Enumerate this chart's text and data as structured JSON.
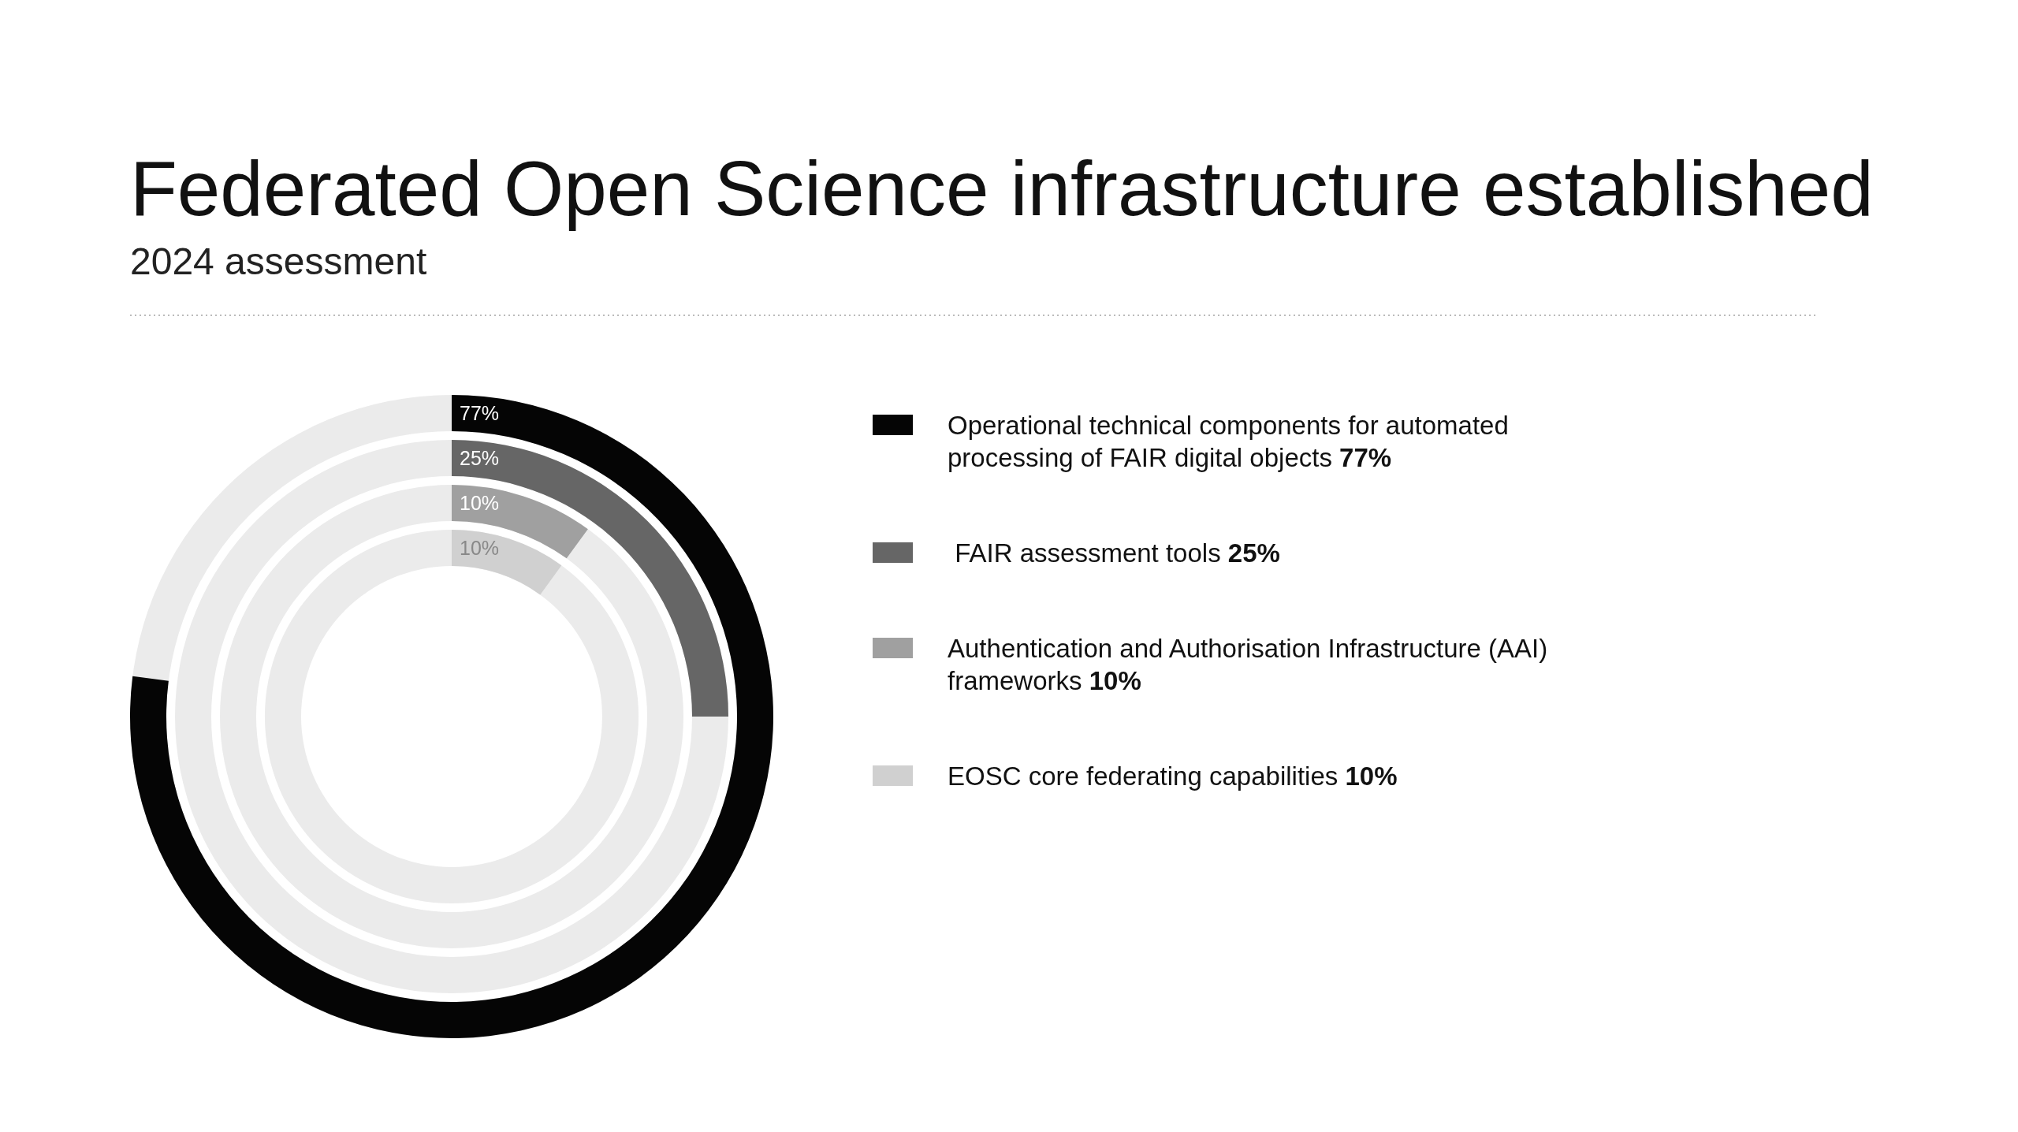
{
  "chart_data": {
    "type": "other",
    "title": "Federated Open Science infrastructure established",
    "subtitle": "2024 assessment",
    "categories": [
      "Operational technical components for automated processing of FAIR digital objects",
      " FAIR assessment tools",
      "Authentication and Authorisation Infrastructure (AAI) frameworks",
      "EOSC core federating capabilities"
    ],
    "values": [
      77,
      25,
      10,
      10
    ],
    "colors": [
      "#050505",
      "#666666",
      "#a0a0a0",
      "#d0d0d0"
    ],
    "value_labels": [
      "77%",
      "25%",
      "10%",
      "10%"
    ]
  }
}
